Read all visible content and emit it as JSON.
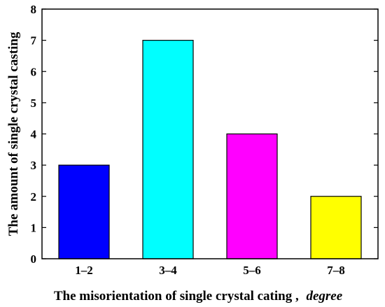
{
  "chart_data": {
    "type": "bar",
    "categories": [
      "1–2",
      "3–4",
      "5–6",
      "7–8"
    ],
    "values": [
      3,
      7,
      4,
      2
    ],
    "bar_colors": [
      "#0000ff",
      "#00ffff",
      "#ff00ff",
      "#ffff00"
    ],
    "title": "",
    "xlabel": "The misorientation of single crystal cating ,",
    "xlabel_unit": "degree",
    "ylabel": "The amount of single crystal casting",
    "ylim": [
      0,
      8
    ],
    "yticks": [
      0,
      1,
      2,
      3,
      4,
      5,
      6,
      7,
      8
    ],
    "grid": false,
    "legend": "none"
  }
}
